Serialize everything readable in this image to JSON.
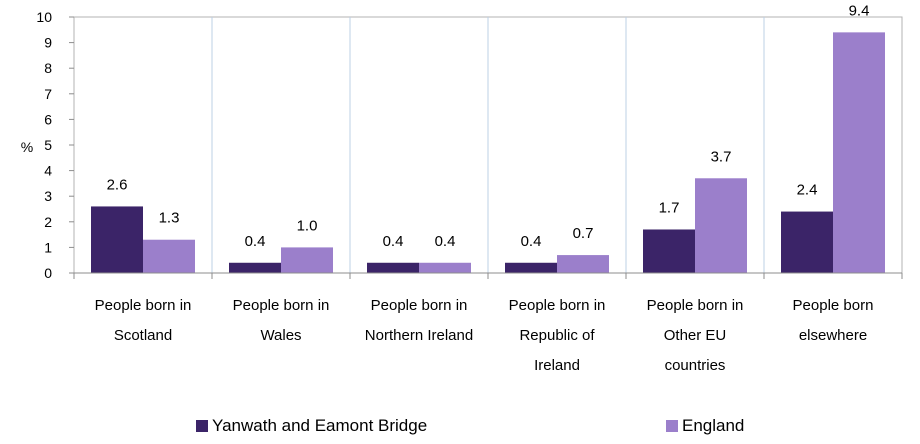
{
  "chart_data": {
    "type": "bar",
    "ylabel": "%",
    "ylim": [
      0,
      10
    ],
    "yticks": [
      "0",
      "1",
      "2",
      "3",
      "4",
      "5",
      "6",
      "7",
      "8",
      "9",
      "10"
    ],
    "grid": true,
    "legend_position": "bottom",
    "categories": [
      [
        "People born in",
        "Scotland"
      ],
      [
        "People born in",
        "Wales"
      ],
      [
        "People born in",
        "Northern Ireland"
      ],
      [
        "People born in",
        "Republic of",
        "Ireland"
      ],
      [
        "People born in",
        "Other EU",
        "countries"
      ],
      [
        "People born",
        "elsewhere"
      ]
    ],
    "series": [
      {
        "name": "Yanwath and Eamont Bridge",
        "color": "#3b2468",
        "values": [
          2.6,
          0.4,
          0.4,
          0.4,
          1.7,
          2.4
        ],
        "labels": [
          "2.6",
          "0.4",
          "0.4",
          "0.4",
          "1.7",
          "2.4"
        ]
      },
      {
        "name": "England",
        "color": "#9b7fcb",
        "values": [
          1.3,
          1.0,
          0.4,
          0.7,
          3.7,
          9.4
        ],
        "labels": [
          "1.3",
          "1.0",
          "0.4",
          "0.7",
          "3.7",
          "9.4"
        ]
      }
    ]
  }
}
